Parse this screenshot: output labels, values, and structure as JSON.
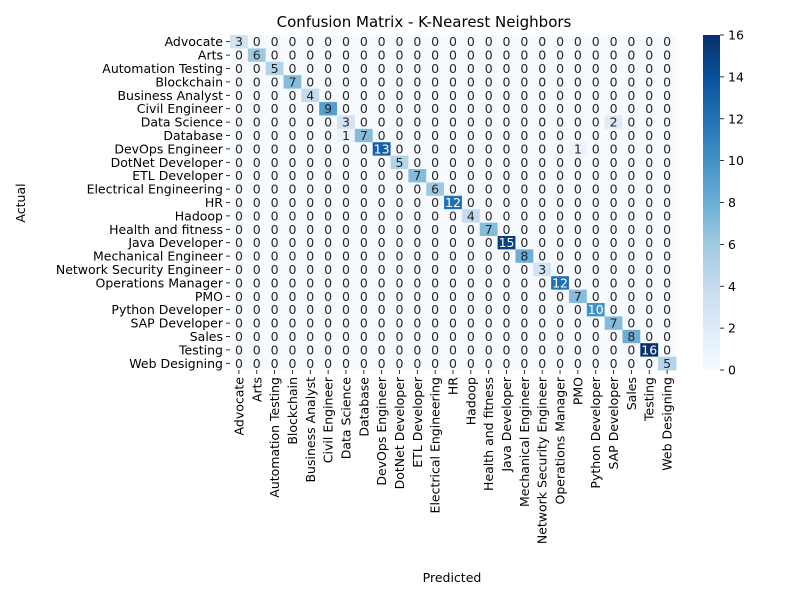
{
  "chart_data": {
    "type": "heatmap",
    "title": "Confusion Matrix - K-Nearest Neighbors",
    "xlabel": "Predicted",
    "ylabel": "Actual",
    "labels": [
      "Advocate",
      "Arts",
      "Automation Testing",
      "Blockchain",
      "Business Analyst",
      "Civil Engineer",
      "Data Science",
      "Database",
      "DevOps Engineer",
      "DotNet Developer",
      "ETL Developer",
      "Electrical Engineering",
      "HR",
      "Hadoop",
      "Health and fitness",
      "Java Developer",
      "Mechanical Engineer",
      "Network Security Engineer",
      "Operations Manager",
      "PMO",
      "Python Developer",
      "SAP Developer",
      "Sales",
      "Testing",
      "Web Designing"
    ],
    "matrix": [
      [
        3,
        0,
        0,
        0,
        0,
        0,
        0,
        0,
        0,
        0,
        0,
        0,
        0,
        0,
        0,
        0,
        0,
        0,
        0,
        0,
        0,
        0,
        0,
        0,
        0
      ],
      [
        0,
        6,
        0,
        0,
        0,
        0,
        0,
        0,
        0,
        0,
        0,
        0,
        0,
        0,
        0,
        0,
        0,
        0,
        0,
        0,
        0,
        0,
        0,
        0,
        0
      ],
      [
        0,
        0,
        5,
        0,
        0,
        0,
        0,
        0,
        0,
        0,
        0,
        0,
        0,
        0,
        0,
        0,
        0,
        0,
        0,
        0,
        0,
        0,
        0,
        0,
        0
      ],
      [
        0,
        0,
        0,
        7,
        0,
        0,
        0,
        0,
        0,
        0,
        0,
        0,
        0,
        0,
        0,
        0,
        0,
        0,
        0,
        0,
        0,
        0,
        0,
        0,
        0
      ],
      [
        0,
        0,
        0,
        0,
        4,
        0,
        0,
        0,
        0,
        0,
        0,
        0,
        0,
        0,
        0,
        0,
        0,
        0,
        0,
        0,
        0,
        0,
        0,
        0,
        0
      ],
      [
        0,
        0,
        0,
        0,
        0,
        9,
        0,
        0,
        0,
        0,
        0,
        0,
        0,
        0,
        0,
        0,
        0,
        0,
        0,
        0,
        0,
        0,
        0,
        0,
        0
      ],
      [
        0,
        0,
        0,
        0,
        0,
        0,
        3,
        0,
        0,
        0,
        0,
        0,
        0,
        0,
        0,
        0,
        0,
        0,
        0,
        0,
        0,
        2,
        0,
        0,
        0
      ],
      [
        0,
        0,
        0,
        0,
        0,
        0,
        1,
        7,
        0,
        0,
        0,
        0,
        0,
        0,
        0,
        0,
        0,
        0,
        0,
        0,
        0,
        0,
        0,
        0,
        0
      ],
      [
        0,
        0,
        0,
        0,
        0,
        0,
        0,
        0,
        13,
        0,
        0,
        0,
        0,
        0,
        0,
        0,
        0,
        0,
        0,
        1,
        0,
        0,
        0,
        0,
        0
      ],
      [
        0,
        0,
        0,
        0,
        0,
        0,
        0,
        0,
        0,
        5,
        0,
        0,
        0,
        0,
        0,
        0,
        0,
        0,
        0,
        0,
        0,
        0,
        0,
        0,
        0
      ],
      [
        0,
        0,
        0,
        0,
        0,
        0,
        0,
        0,
        0,
        0,
        7,
        0,
        0,
        0,
        0,
        0,
        0,
        0,
        0,
        0,
        0,
        0,
        0,
        0,
        0
      ],
      [
        0,
        0,
        0,
        0,
        0,
        0,
        0,
        0,
        0,
        0,
        0,
        6,
        0,
        0,
        0,
        0,
        0,
        0,
        0,
        0,
        0,
        0,
        0,
        0,
        0
      ],
      [
        0,
        0,
        0,
        0,
        0,
        0,
        0,
        0,
        0,
        0,
        0,
        0,
        12,
        0,
        0,
        0,
        0,
        0,
        0,
        0,
        0,
        0,
        0,
        0,
        0
      ],
      [
        0,
        0,
        0,
        0,
        0,
        0,
        0,
        0,
        0,
        0,
        0,
        0,
        0,
        4,
        0,
        0,
        0,
        0,
        0,
        0,
        0,
        0,
        0,
        0,
        0
      ],
      [
        0,
        0,
        0,
        0,
        0,
        0,
        0,
        0,
        0,
        0,
        0,
        0,
        0,
        0,
        7,
        0,
        0,
        0,
        0,
        0,
        0,
        0,
        0,
        0,
        0
      ],
      [
        0,
        0,
        0,
        0,
        0,
        0,
        0,
        0,
        0,
        0,
        0,
        0,
        0,
        0,
        0,
        15,
        0,
        0,
        0,
        0,
        0,
        0,
        0,
        0,
        0
      ],
      [
        0,
        0,
        0,
        0,
        0,
        0,
        0,
        0,
        0,
        0,
        0,
        0,
        0,
        0,
        0,
        0,
        8,
        0,
        0,
        0,
        0,
        0,
        0,
        0,
        0
      ],
      [
        0,
        0,
        0,
        0,
        0,
        0,
        0,
        0,
        0,
        0,
        0,
        0,
        0,
        0,
        0,
        0,
        0,
        3,
        0,
        0,
        0,
        0,
        0,
        0,
        0
      ],
      [
        0,
        0,
        0,
        0,
        0,
        0,
        0,
        0,
        0,
        0,
        0,
        0,
        0,
        0,
        0,
        0,
        0,
        0,
        12,
        0,
        0,
        0,
        0,
        0,
        0
      ],
      [
        0,
        0,
        0,
        0,
        0,
        0,
        0,
        0,
        0,
        0,
        0,
        0,
        0,
        0,
        0,
        0,
        0,
        0,
        0,
        7,
        0,
        0,
        0,
        0,
        0
      ],
      [
        0,
        0,
        0,
        0,
        0,
        0,
        0,
        0,
        0,
        0,
        0,
        0,
        0,
        0,
        0,
        0,
        0,
        0,
        0,
        0,
        10,
        0,
        0,
        0,
        0
      ],
      [
        0,
        0,
        0,
        0,
        0,
        0,
        0,
        0,
        0,
        0,
        0,
        0,
        0,
        0,
        0,
        0,
        0,
        0,
        0,
        0,
        0,
        7,
        0,
        0,
        0
      ],
      [
        0,
        0,
        0,
        0,
        0,
        0,
        0,
        0,
        0,
        0,
        0,
        0,
        0,
        0,
        0,
        0,
        0,
        0,
        0,
        0,
        0,
        0,
        8,
        0,
        0
      ],
      [
        0,
        0,
        0,
        0,
        0,
        0,
        0,
        0,
        0,
        0,
        0,
        0,
        0,
        0,
        0,
        0,
        0,
        0,
        0,
        0,
        0,
        0,
        0,
        16,
        0
      ],
      [
        0,
        0,
        0,
        0,
        0,
        0,
        0,
        0,
        0,
        0,
        0,
        0,
        0,
        0,
        0,
        0,
        0,
        0,
        0,
        0,
        0,
        0,
        0,
        0,
        5
      ]
    ],
    "vmin": 0,
    "vmax": 16,
    "colorbar_ticks": [
      0,
      2,
      4,
      6,
      8,
      10,
      12,
      14,
      16
    ],
    "colormap": "Blues",
    "colormap_stops": [
      "#f7fbff",
      "#deebf7",
      "#c6dbef",
      "#9ecae1",
      "#6baed6",
      "#4292c6",
      "#2171b5",
      "#08519c",
      "#08306b"
    ],
    "annotated": true,
    "grid": false
  }
}
